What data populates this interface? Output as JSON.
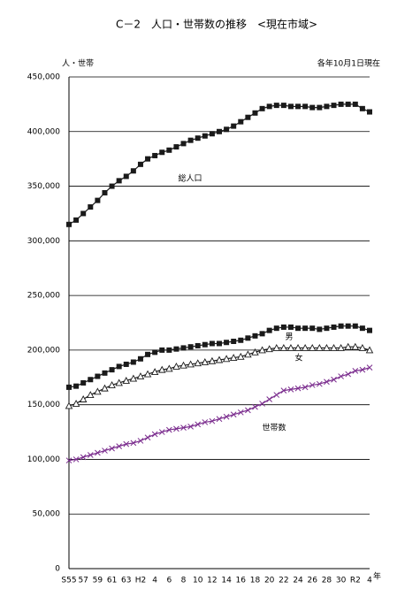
{
  "chart_data": {
    "type": "line",
    "title": "C－2　人口・世帯数の推移　<現在市域>",
    "y_label": "人・世帯",
    "note": "各年10月1日現在",
    "x_unit": "年",
    "categories": [
      "S55",
      null,
      "57",
      null,
      "59",
      null,
      "61",
      null,
      "63",
      null,
      "H2",
      null,
      "4",
      null,
      "6",
      null,
      "8",
      null,
      "10",
      null,
      "12",
      null,
      "14",
      null,
      "16",
      null,
      "18",
      null,
      "20",
      null,
      "22",
      null,
      "24",
      null,
      "26",
      null,
      "28",
      null,
      "30",
      null,
      "R2",
      null,
      "4"
    ],
    "ylim": [
      0,
      450000
    ],
    "yticks": [
      0,
      {
        "value": 50000,
        "label": "50,000"
      },
      {
        "value": 100000,
        "label": "100,000"
      },
      {
        "value": 150000,
        "label": "150,000"
      },
      {
        "value": 200000,
        "label": "200,000"
      },
      {
        "value": 250000,
        "label": "250,000"
      },
      {
        "value": 300000,
        "label": "300,000"
      },
      {
        "value": 350000,
        "label": "350,000"
      },
      {
        "value": 400000,
        "label": "400,000"
      },
      {
        "value": 450000,
        "label": "450,000"
      }
    ],
    "grid": true,
    "series": [
      {
        "name": "総人口",
        "color": "#1a1a1a",
        "marker": "square",
        "values": [
          315000,
          319000,
          325000,
          331000,
          337000,
          344000,
          350000,
          355000,
          359000,
          364000,
          370000,
          375000,
          378000,
          381000,
          383000,
          386000,
          389000,
          392000,
          394000,
          396000,
          398000,
          400000,
          402000,
          405000,
          409000,
          413000,
          417000,
          421000,
          423000,
          424000,
          424000,
          423000,
          423000,
          423000,
          422000,
          422000,
          423000,
          424000,
          425000,
          425000,
          425000,
          421000,
          418000
        ]
      },
      {
        "name": "男",
        "color": "#1a1a1a",
        "marker": "square",
        "values": [
          166000,
          167000,
          170000,
          173000,
          176000,
          179000,
          182000,
          185000,
          187000,
          189000,
          192000,
          196000,
          198000,
          200000,
          200000,
          201000,
          202000,
          203000,
          204000,
          205000,
          206000,
          206000,
          207000,
          208000,
          209000,
          211000,
          213000,
          215000,
          218000,
          220000,
          221000,
          221000,
          220000,
          220000,
          220000,
          219000,
          220000,
          221000,
          222000,
          222000,
          222000,
          220000,
          218000
        ]
      },
      {
        "name": "女",
        "color": "#1a1a1a",
        "marker": "triangle",
        "values": [
          149000,
          151000,
          155000,
          159000,
          162000,
          165000,
          168000,
          170000,
          172000,
          174000,
          176000,
          178000,
          180000,
          182000,
          183000,
          185000,
          186000,
          187000,
          188000,
          189000,
          190000,
          191000,
          192000,
          193000,
          194000,
          196000,
          198000,
          200000,
          201000,
          202000,
          202000,
          202000,
          202000,
          202000,
          202000,
          202000,
          202000,
          202000,
          202000,
          203000,
          203000,
          202000,
          200000
        ]
      },
      {
        "name": "世帯数",
        "color": "#7b2d8e",
        "marker": "cross",
        "values": [
          99000,
          100000,
          102000,
          104000,
          106000,
          108000,
          110000,
          112000,
          114000,
          115000,
          117000,
          120000,
          123000,
          125000,
          127000,
          128000,
          129000,
          130000,
          132000,
          134000,
          135000,
          137000,
          139000,
          141000,
          143000,
          145000,
          148000,
          151000,
          155000,
          159000,
          163000,
          164000,
          165000,
          166000,
          168000,
          169000,
          171000,
          173000,
          176000,
          178000,
          181000,
          182000,
          184000
        ]
      }
    ]
  }
}
